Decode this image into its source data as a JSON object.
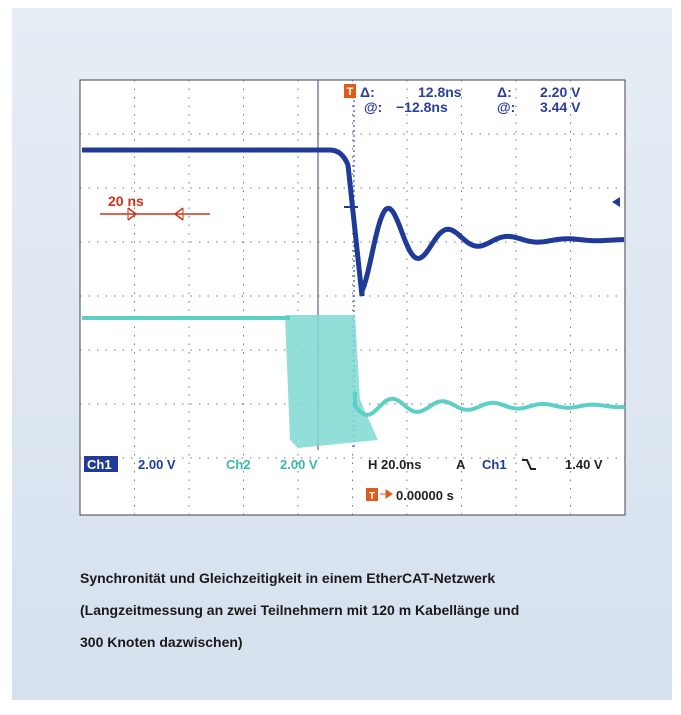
{
  "scope": {
    "readout": {
      "delta_time_label": "Δ:",
      "delta_time": "12.8ns",
      "delta_volt_label": "Δ:",
      "delta_volt": "2.20 V",
      "at_time_label": "@:",
      "at_time": "−12.8ns",
      "at_volt_label": "@:",
      "at_volt": "3.44 V"
    },
    "scale_marker": "20 ns",
    "status": {
      "ch1": "Ch1",
      "ch1_scale": "2.00 V",
      "ch2": "Ch2",
      "ch2_scale": "2.00 V",
      "horizontal": "H 20.0ns",
      "trigger_mode": "A",
      "trigger_source": "Ch1",
      "trigger_level": "1.40 V",
      "trigger_position": "0.00000 s"
    }
  },
  "caption": {
    "lines": [
      "Synchronität und Gleichzeitigkeit in einem EtherCAT-Netzwerk",
      "(Langzeitmessung an zwei Teilnehmern mit 120 m Kabellänge und",
      "300 Knoten dazwischen)"
    ]
  }
}
